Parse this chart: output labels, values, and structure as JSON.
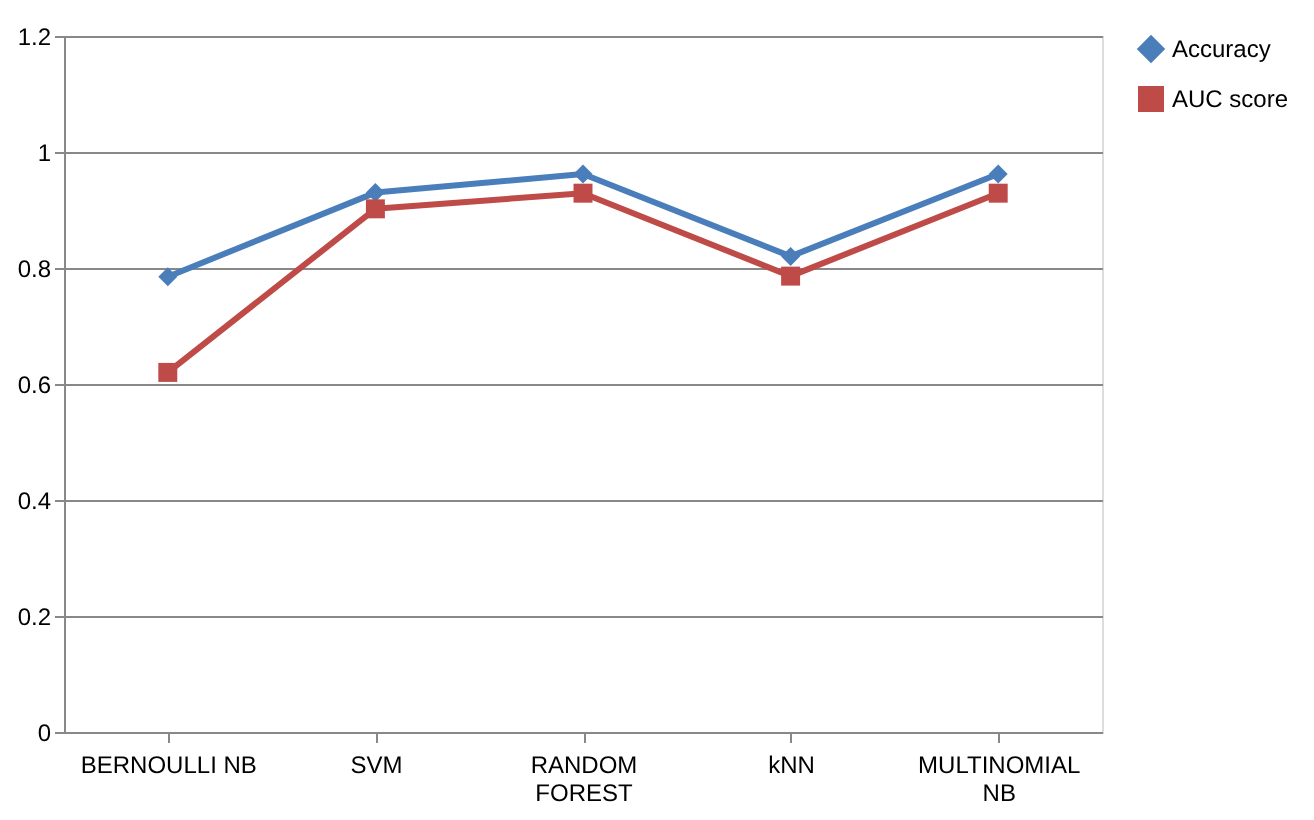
{
  "chart_data": {
    "type": "line",
    "categories": [
      "BERNOULLI NB",
      "SVM",
      "RANDOM FOREST",
      "kNN",
      "MULTINOMIAL NB"
    ],
    "series": [
      {
        "name": "Accuracy",
        "color": "#4a7ebb",
        "marker": "diamond",
        "values": [
          0.785,
          0.93,
          0.962,
          0.82,
          0.962
        ]
      },
      {
        "name": "AUC score",
        "color": "#be4b48",
        "marker": "square",
        "values": [
          0.62,
          0.902,
          0.929,
          0.786,
          0.929
        ]
      }
    ],
    "ylim": [
      0,
      1.2
    ],
    "yticks": [
      0,
      0.2,
      0.4,
      0.6,
      0.8,
      1,
      1.2
    ],
    "grid": "y",
    "legend": "right",
    "line_style": "solid"
  }
}
